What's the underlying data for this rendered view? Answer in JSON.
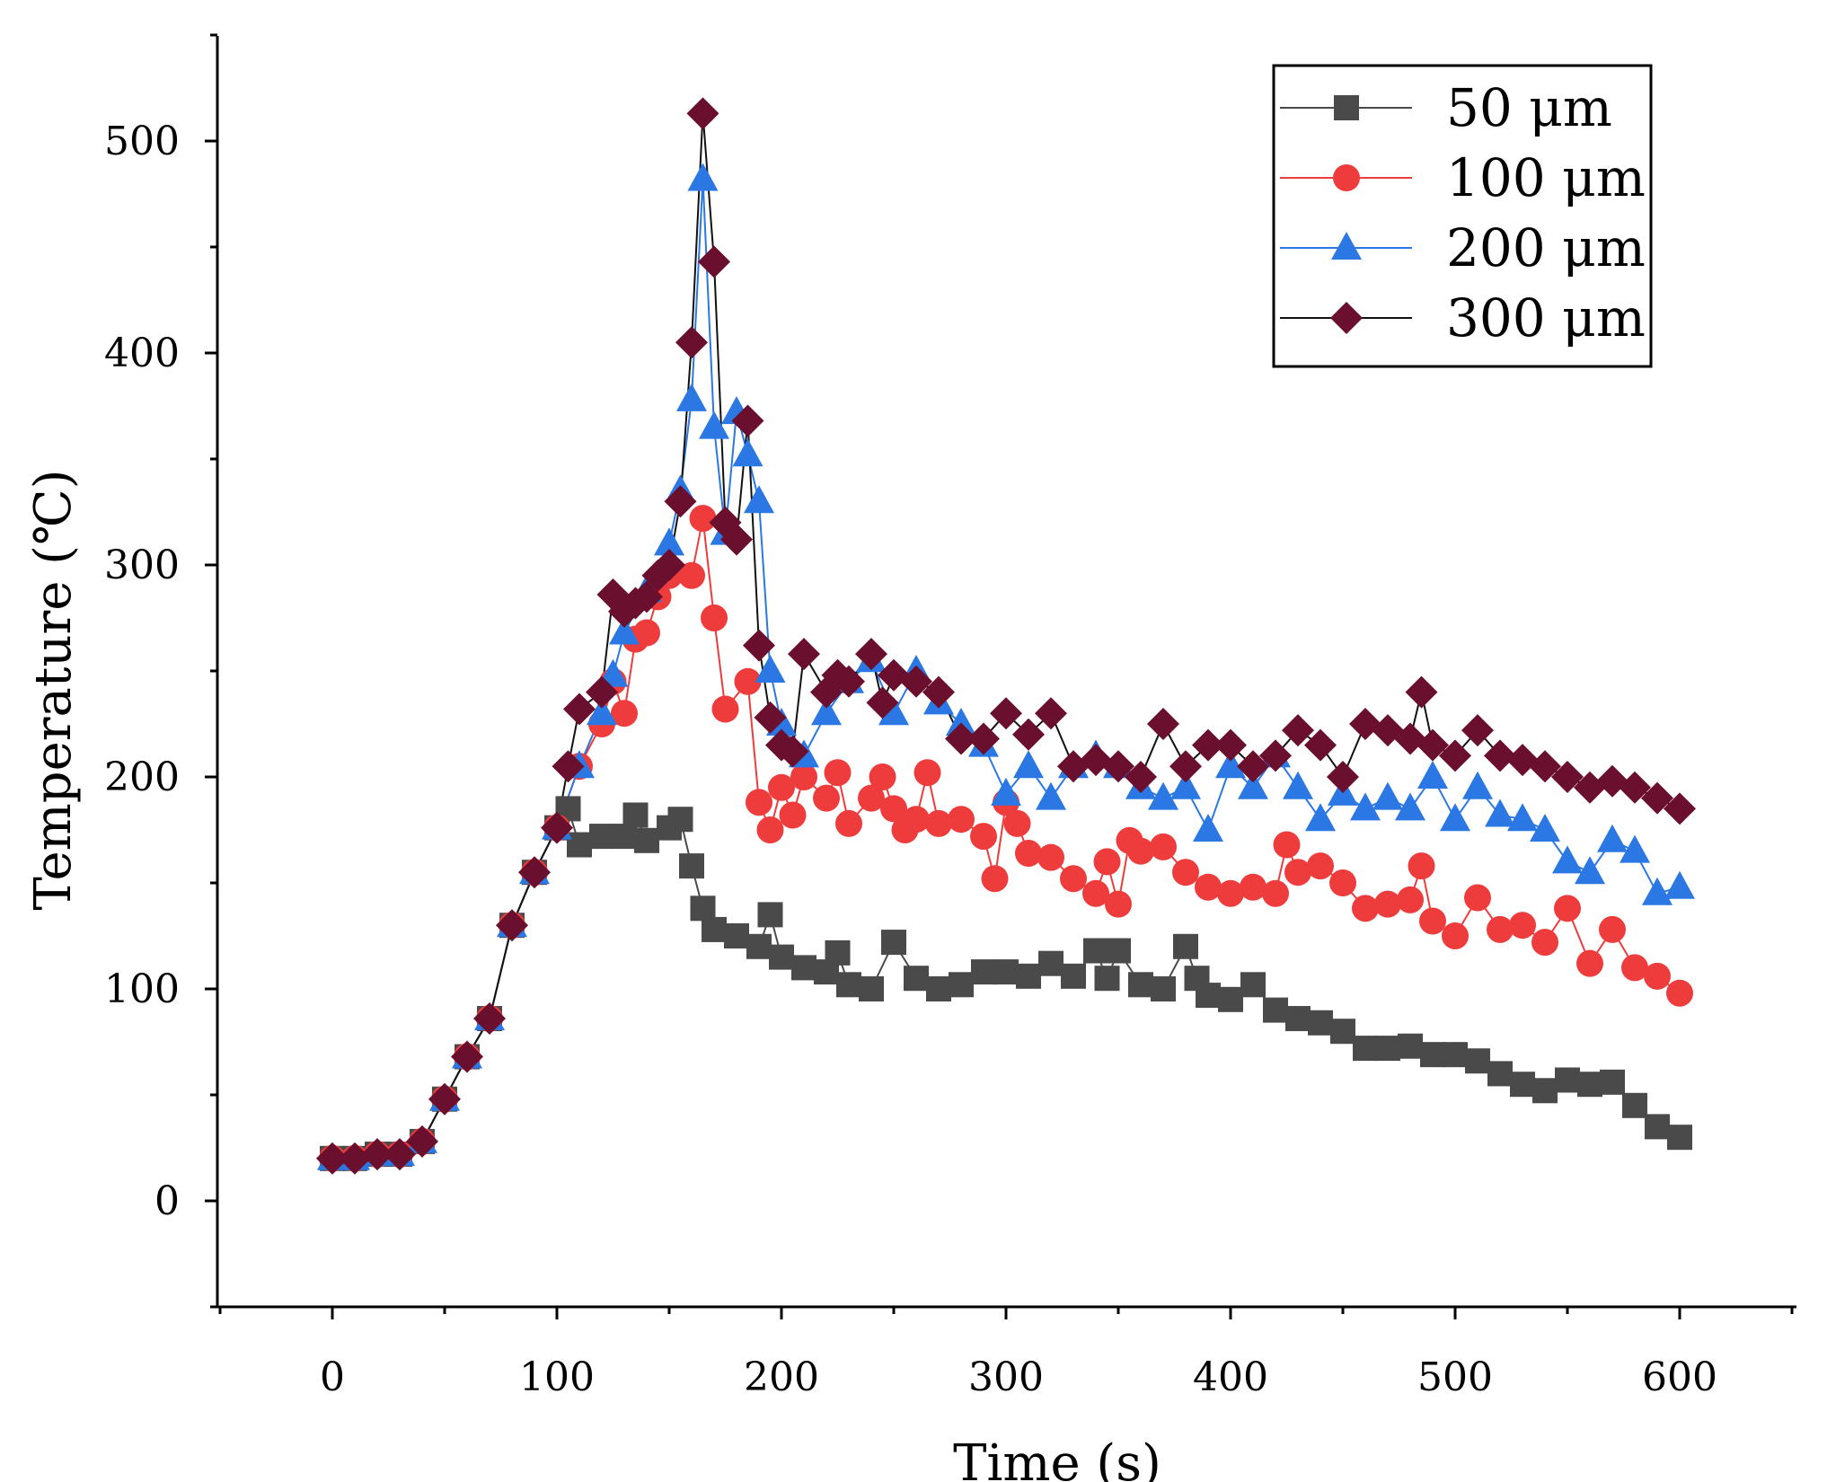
{
  "chart_data": {
    "type": "line",
    "title": "",
    "xlabel": "Time (s)",
    "ylabel": "Temperature (℃)",
    "xlim": [
      -50,
      650
    ],
    "ylim": [
      -50,
      550
    ],
    "xticks": [
      0,
      100,
      200,
      300,
      400,
      500,
      600
    ],
    "yticks": [
      0,
      100,
      200,
      300,
      400,
      500
    ],
    "legend_position": "top-right",
    "series": [
      {
        "name": "50 μm",
        "color": "#4a4a4a",
        "line_color": "#4a4a4a",
        "marker": "square",
        "x": [
          0,
          10,
          20,
          30,
          40,
          50,
          60,
          70,
          80,
          90,
          100,
          105,
          110,
          120,
          130,
          135,
          140,
          150,
          155,
          160,
          165,
          170,
          180,
          190,
          195,
          200,
          210,
          220,
          225,
          230,
          240,
          250,
          260,
          270,
          280,
          290,
          300,
          310,
          320,
          330,
          340,
          345,
          350,
          360,
          370,
          380,
          385,
          390,
          400,
          410,
          420,
          430,
          440,
          450,
          460,
          470,
          480,
          490,
          500,
          510,
          520,
          530,
          540,
          550,
          560,
          570,
          580,
          590,
          600
        ],
        "y": [
          20,
          20,
          22,
          22,
          28,
          48,
          68,
          86,
          130,
          155,
          176,
          185,
          168,
          172,
          172,
          182,
          170,
          176,
          180,
          158,
          138,
          128,
          125,
          120,
          135,
          115,
          110,
          108,
          117,
          102,
          100,
          122,
          105,
          100,
          102,
          108,
          108,
          106,
          112,
          106,
          118,
          105,
          118,
          102,
          100,
          120,
          105,
          97,
          95,
          102,
          90,
          86,
          84,
          80,
          72,
          72,
          73,
          69,
          69,
          66,
          60,
          55,
          52,
          57,
          55,
          56,
          45,
          35,
          30
        ]
      },
      {
        "name": "100 μm",
        "color": "#ee3c3c",
        "line_color": "#ee3c3c",
        "marker": "circle",
        "x": [
          0,
          10,
          20,
          30,
          40,
          50,
          60,
          70,
          80,
          90,
          100,
          110,
          120,
          125,
          130,
          135,
          140,
          145,
          150,
          160,
          165,
          170,
          175,
          185,
          190,
          195,
          200,
          205,
          210,
          220,
          225,
          230,
          240,
          245,
          250,
          255,
          260,
          265,
          270,
          280,
          290,
          295,
          300,
          305,
          310,
          320,
          330,
          340,
          345,
          350,
          355,
          360,
          370,
          380,
          390,
          400,
          410,
          420,
          425,
          430,
          440,
          450,
          460,
          470,
          480,
          485,
          490,
          500,
          510,
          520,
          530,
          540,
          550,
          560,
          570,
          580,
          590,
          600
        ],
        "y": [
          20,
          20,
          22,
          22,
          28,
          48,
          68,
          86,
          130,
          155,
          176,
          205,
          225,
          245,
          230,
          265,
          268,
          285,
          295,
          295,
          322,
          275,
          232,
          245,
          188,
          175,
          195,
          182,
          200,
          190,
          202,
          178,
          190,
          200,
          185,
          175,
          180,
          202,
          178,
          180,
          172,
          152,
          188,
          178,
          164,
          162,
          152,
          145,
          160,
          140,
          170,
          165,
          167,
          155,
          148,
          145,
          148,
          145,
          168,
          155,
          158,
          150,
          138,
          140,
          142,
          158,
          132,
          125,
          143,
          128,
          130,
          122,
          138,
          112,
          128,
          110,
          106,
          98
        ]
      },
      {
        "name": "200 μm",
        "color": "#2b78e4",
        "line_color": "#2b78e4",
        "marker": "triangle",
        "x": [
          0,
          10,
          20,
          30,
          40,
          50,
          60,
          70,
          80,
          90,
          100,
          110,
          120,
          125,
          130,
          140,
          150,
          155,
          160,
          165,
          170,
          175,
          180,
          185,
          190,
          195,
          200,
          210,
          220,
          230,
          240,
          250,
          260,
          270,
          280,
          290,
          300,
          310,
          320,
          330,
          340,
          350,
          360,
          370,
          380,
          390,
          400,
          410,
          420,
          430,
          440,
          450,
          460,
          470,
          480,
          490,
          500,
          510,
          520,
          530,
          540,
          550,
          560,
          570,
          580,
          590,
          600
        ],
        "y": [
          20,
          20,
          22,
          22,
          28,
          48,
          68,
          86,
          130,
          155,
          176,
          205,
          230,
          248,
          268,
          288,
          310,
          335,
          378,
          482,
          365,
          315,
          372,
          352,
          330,
          250,
          225,
          210,
          230,
          245,
          255,
          230,
          250,
          235,
          225,
          215,
          192,
          205,
          190,
          205,
          210,
          205,
          195,
          190,
          195,
          175,
          205,
          195,
          210,
          195,
          180,
          192,
          185,
          190,
          185,
          200,
          180,
          195,
          182,
          180,
          175,
          160,
          155,
          170,
          165,
          145,
          148
        ]
      },
      {
        "name": "300 μm",
        "color": "#6b0f2e",
        "line_color": "#111111",
        "marker": "diamond",
        "x": [
          0,
          10,
          20,
          30,
          40,
          50,
          60,
          70,
          80,
          90,
          100,
          105,
          110,
          120,
          125,
          130,
          135,
          140,
          145,
          150,
          155,
          160,
          165,
          170,
          175,
          180,
          185,
          190,
          195,
          200,
          205,
          210,
          220,
          225,
          230,
          240,
          245,
          250,
          260,
          270,
          280,
          290,
          300,
          310,
          320,
          330,
          340,
          350,
          360,
          370,
          380,
          390,
          400,
          410,
          420,
          430,
          440,
          450,
          460,
          470,
          480,
          485,
          490,
          500,
          510,
          520,
          530,
          540,
          550,
          560,
          570,
          580,
          590,
          600
        ],
        "y": [
          20,
          20,
          22,
          22,
          28,
          48,
          68,
          86,
          130,
          155,
          176,
          205,
          232,
          240,
          286,
          278,
          282,
          285,
          295,
          300,
          330,
          405,
          513,
          443,
          320,
          312,
          368,
          262,
          228,
          215,
          212,
          258,
          240,
          248,
          245,
          258,
          235,
          248,
          245,
          240,
          218,
          218,
          230,
          220,
          230,
          205,
          208,
          205,
          200,
          225,
          205,
          215,
          215,
          205,
          210,
          222,
          215,
          200,
          225,
          222,
          218,
          240,
          215,
          210,
          222,
          210,
          208,
          205,
          200,
          195,
          198,
          195,
          190,
          185
        ]
      }
    ]
  }
}
